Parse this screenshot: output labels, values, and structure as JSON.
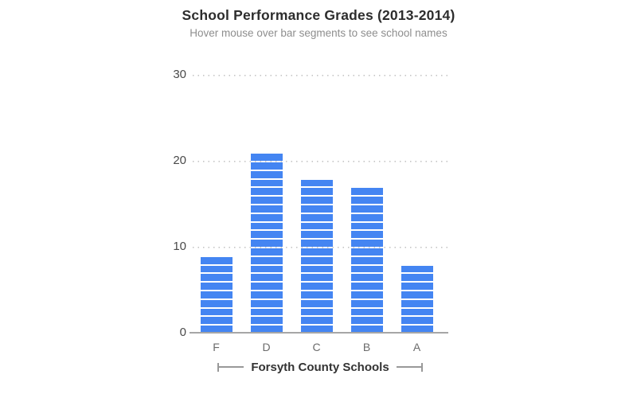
{
  "header": {
    "title": "School Performance Grades (2013-2014)",
    "subtitle": "Hover mouse over bar segments to see school names"
  },
  "xaxis": {
    "title": "Forsyth County Schools"
  },
  "chart_data": {
    "type": "bar",
    "variant": "unit-segmented-stacked",
    "title": "School Performance Grades (2013-2014)",
    "subtitle": "Hover mouse over bar segments to see school names",
    "categories": [
      "F",
      "D",
      "C",
      "B",
      "A"
    ],
    "values": [
      9,
      21,
      18,
      17,
      8
    ],
    "segment_unit": 1,
    "xlabel": "Forsyth County Schools",
    "ylabel": "",
    "ylim": [
      0,
      30
    ],
    "yticks": [
      0,
      10,
      20,
      30
    ],
    "grid": "horizontal-dotted",
    "legend": "none",
    "colors": {
      "bar": "#4485F2",
      "segment_divider": "#ffffff",
      "gridline": "#c4c4c4",
      "axis_line": "#a6a6a6",
      "title_text": "#2d2d2d",
      "subtitle_text": "#8e8e8e",
      "tick_text": "#4a4a4a"
    }
  }
}
